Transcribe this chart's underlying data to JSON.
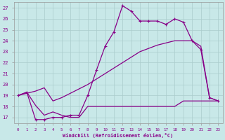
{
  "xlabel": "Windchill (Refroidissement éolien,°C)",
  "bg_color": "#c8e8e8",
  "line_color": "#880088",
  "grid_color": "#aacccc",
  "spine_color": "#999999",
  "xlim": [
    -0.5,
    23.5
  ],
  "ylim": [
    16.5,
    27.5
  ],
  "yticks": [
    17,
    18,
    19,
    20,
    21,
    22,
    23,
    24,
    25,
    26,
    27
  ],
  "xticks": [
    0,
    1,
    2,
    3,
    4,
    5,
    6,
    7,
    8,
    9,
    10,
    11,
    12,
    13,
    14,
    15,
    16,
    17,
    18,
    19,
    20,
    21,
    22,
    23
  ],
  "series1_x": [
    0,
    1,
    2,
    3,
    4,
    5,
    6,
    7,
    8,
    9,
    10,
    11,
    12,
    13,
    14,
    15,
    16,
    17,
    18,
    19,
    20,
    21,
    22,
    23
  ],
  "series1_y": [
    19.0,
    19.3,
    16.8,
    16.8,
    17.0,
    17.0,
    17.2,
    17.2,
    19.0,
    21.3,
    23.5,
    24.8,
    27.2,
    26.7,
    25.8,
    25.8,
    25.8,
    25.5,
    26.0,
    25.7,
    24.0,
    23.2,
    18.8,
    18.5
  ],
  "series2_x": [
    0,
    1,
    2,
    3,
    4,
    5,
    6,
    7,
    8,
    9,
    10,
    11,
    12,
    13,
    14,
    15,
    16,
    17,
    18,
    19,
    20,
    21,
    22,
    23
  ],
  "series2_y": [
    19.0,
    19.2,
    19.4,
    19.7,
    18.5,
    18.8,
    19.2,
    19.6,
    20.0,
    20.5,
    21.0,
    21.5,
    22.0,
    22.5,
    23.0,
    23.3,
    23.6,
    23.8,
    24.0,
    24.0,
    24.0,
    23.5,
    18.8,
    18.5
  ],
  "series3_x": [
    0,
    1,
    2,
    3,
    4,
    5,
    6,
    7,
    8,
    9,
    10,
    11,
    12,
    13,
    14,
    15,
    16,
    17,
    18,
    19,
    20,
    21,
    22,
    23
  ],
  "series3_y": [
    19.0,
    19.3,
    18.1,
    17.2,
    17.5,
    17.2,
    17.0,
    17.0,
    18.0,
    18.0,
    18.0,
    18.0,
    18.0,
    18.0,
    18.0,
    18.0,
    18.0,
    18.0,
    18.0,
    18.5,
    18.5,
    18.5,
    18.5,
    18.5
  ]
}
